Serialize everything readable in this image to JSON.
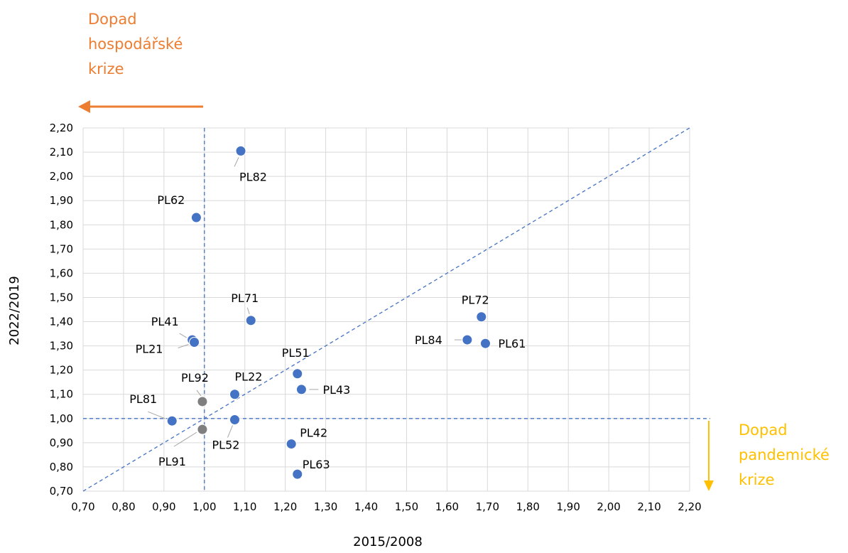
{
  "colors": {
    "economic": "#ED7D31",
    "pandemic": "#FFC000",
    "point": "#4472C4",
    "point_gray": "#7F7F7F",
    "grid": "#D9D9D9",
    "ref_line": "#4472C4"
  },
  "annotations": {
    "economic_crisis": [
      "Dopad",
      "hospodářské",
      "krize"
    ],
    "pandemic_crisis": [
      "Dopad",
      "pandemické",
      "krize"
    ]
  },
  "chart_data": {
    "type": "scatter",
    "xlabel": "2015/2008",
    "ylabel": "2022/2019",
    "xlim": [
      0.7,
      2.2
    ],
    "ylim": [
      0.7,
      2.2
    ],
    "x_ticks": [
      "0,70",
      "0,80",
      "0,90",
      "1,00",
      "1,10",
      "1,20",
      "1,30",
      "1,40",
      "1,50",
      "1,60",
      "1,70",
      "1,80",
      "1,90",
      "2,00",
      "2,10",
      "2,20"
    ],
    "y_ticks": [
      "0,70",
      "0,80",
      "0,90",
      "1,00",
      "1,10",
      "1,20",
      "1,30",
      "1,40",
      "1,50",
      "1,60",
      "1,70",
      "1,80",
      "1,90",
      "2,00",
      "2,10",
      "2,20"
    ],
    "grid": true,
    "reference_lines": {
      "vertical_x": 1.0,
      "horizontal_y": 1.0,
      "diagonal": true
    },
    "points": [
      {
        "label": "PL82",
        "x": 1.09,
        "y": 2.105,
        "color": "blue"
      },
      {
        "label": "PL62",
        "x": 0.98,
        "y": 1.83,
        "color": "blue"
      },
      {
        "label": "PL71",
        "x": 1.115,
        "y": 1.405,
        "color": "blue"
      },
      {
        "label": "PL41",
        "x": 0.97,
        "y": 1.325,
        "color": "blue"
      },
      {
        "label": "PL21",
        "x": 0.975,
        "y": 1.315,
        "color": "blue"
      },
      {
        "label": "PL72",
        "x": 1.685,
        "y": 1.42,
        "color": "blue"
      },
      {
        "label": "PL84",
        "x": 1.65,
        "y": 1.325,
        "color": "blue"
      },
      {
        "label": "PL61",
        "x": 1.695,
        "y": 1.31,
        "color": "blue"
      },
      {
        "label": "PL51",
        "x": 1.23,
        "y": 1.185,
        "color": "blue"
      },
      {
        "label": "PL43",
        "x": 1.24,
        "y": 1.12,
        "color": "blue"
      },
      {
        "label": "PL22",
        "x": 1.075,
        "y": 1.1,
        "color": "blue"
      },
      {
        "label": "PL92",
        "x": 0.995,
        "y": 1.07,
        "color": "gray"
      },
      {
        "label": "PL81",
        "x": 0.92,
        "y": 0.99,
        "color": "blue"
      },
      {
        "label": "PL52",
        "x": 1.075,
        "y": 0.995,
        "color": "blue"
      },
      {
        "label": "PL91",
        "x": 0.995,
        "y": 0.955,
        "color": "gray"
      },
      {
        "label": "PL42",
        "x": 1.215,
        "y": 0.895,
        "color": "blue"
      },
      {
        "label": "PL63",
        "x": 1.23,
        "y": 0.77,
        "color": "blue"
      }
    ]
  }
}
